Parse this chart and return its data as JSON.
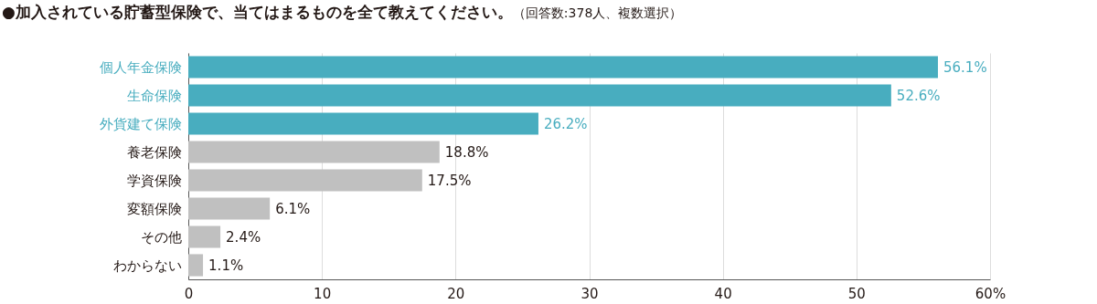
{
  "chart_data": {
    "type": "bar",
    "orientation": "horizontal",
    "title": "●加入されている貯蓄型保険で、当てはまるものを全て教えてください。",
    "subtitle": "（回答数:378人、複数選択）",
    "categories": [
      "個人年金保険",
      "生命保険",
      "外貨建て保険",
      "養老保険",
      "学資保険",
      "変額保険",
      "その他",
      "わからない"
    ],
    "values": [
      56.1,
      52.6,
      26.2,
      18.8,
      17.5,
      6.1,
      2.4,
      1.1
    ],
    "colors": [
      "#48adbf",
      "#48adbf",
      "#48adbf",
      "#c0c0c0",
      "#c0c0c0",
      "#c0c0c0",
      "#c0c0c0",
      "#c0c0c0"
    ],
    "value_labels": [
      "56.1%",
      "52.6%",
      "26.2%",
      "18.8%",
      "17.5%",
      "6.1%",
      "2.4%",
      "1.1%"
    ],
    "xlim": [
      0,
      60
    ],
    "xticks": [
      0,
      10,
      20,
      30,
      40,
      50,
      {
        "value": 60,
        "label": "60%"
      }
    ],
    "grid": "x"
  }
}
